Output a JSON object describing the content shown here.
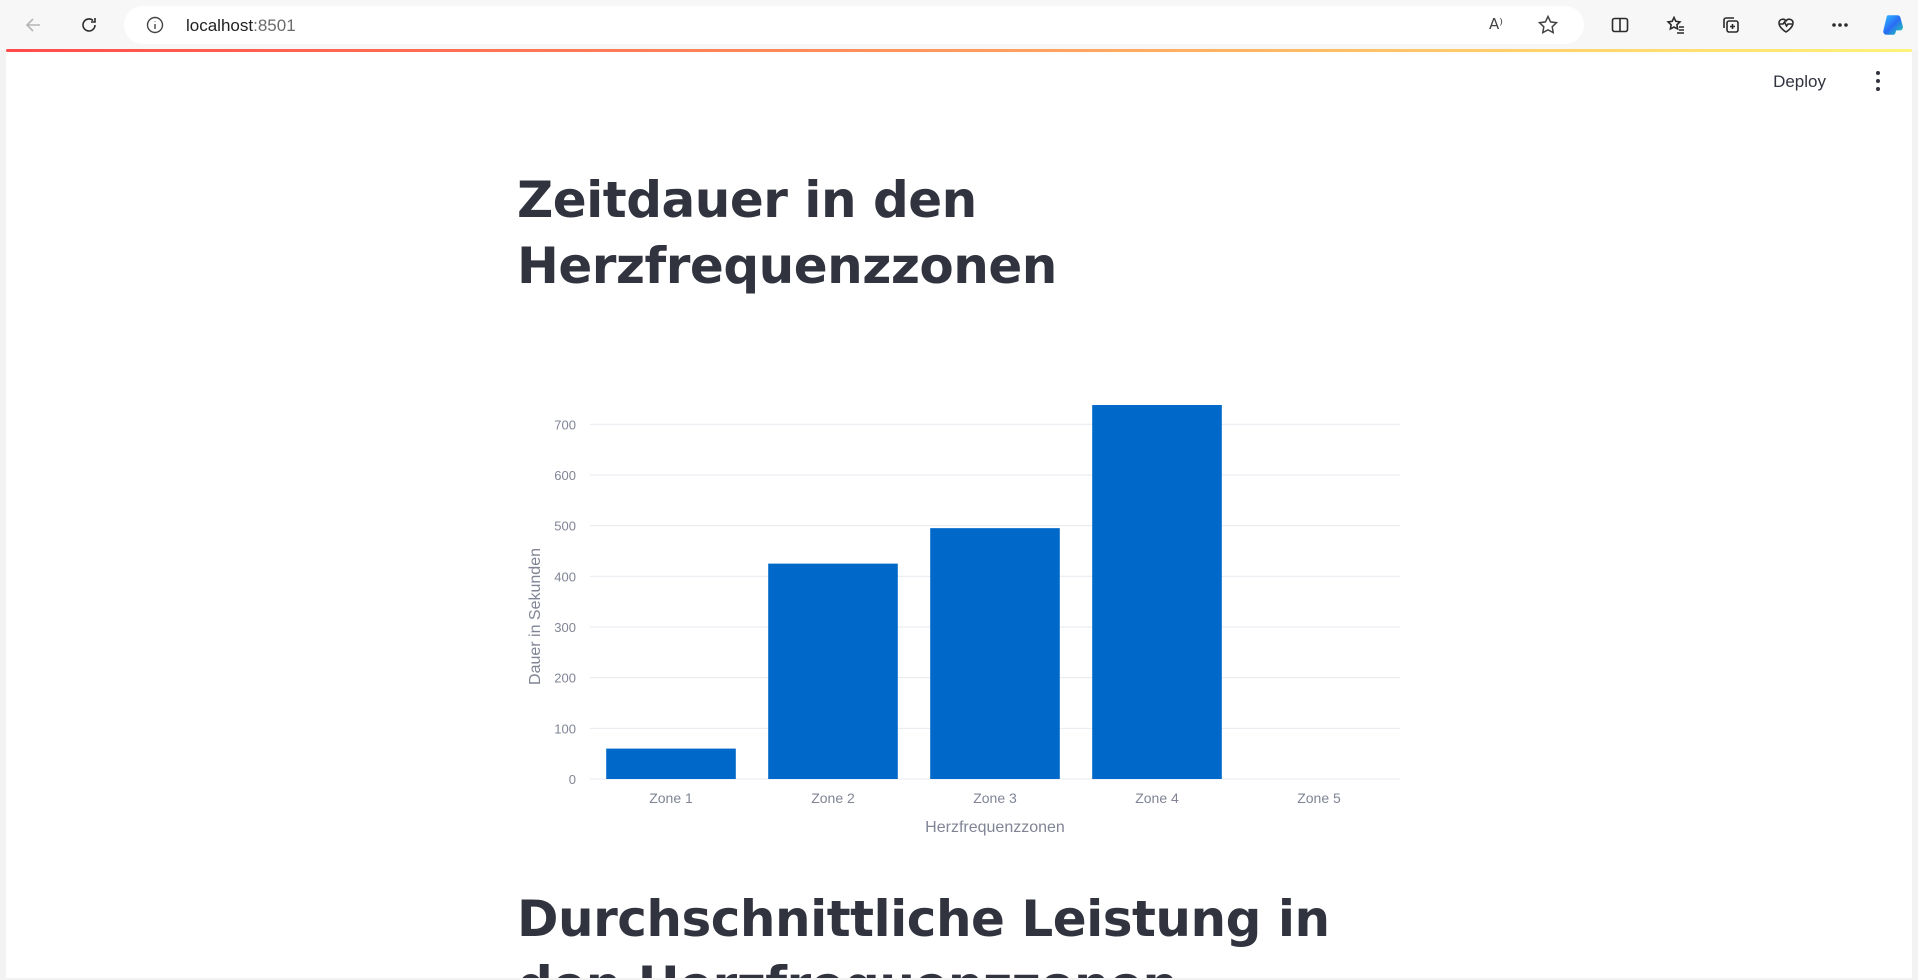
{
  "browser": {
    "url_host": "localhost",
    "url_port": ":8501",
    "read_aloud_label": "A⁾"
  },
  "app": {
    "deploy_label": "Deploy",
    "title_1": "Zeitdauer in den Herzfrequenzzonen",
    "title_2": "Durchschnittliche Leistung in den Herzfrequenzzonen"
  },
  "colors": {
    "bar": "#0068c9",
    "grid": "#e6e9ef",
    "tick_text": "#808495",
    "heading": "#31333f"
  },
  "chart_data": {
    "type": "bar",
    "categories": [
      "Zone 1",
      "Zone 2",
      "Zone 3",
      "Zone 4",
      "Zone 5"
    ],
    "values": [
      60,
      425,
      495,
      738,
      0
    ],
    "title": "",
    "xlabel": "Herzfrequenzzonen",
    "ylabel": "Dauer in Sekunden",
    "ylim": [
      0,
      740
    ],
    "yticks": [
      0,
      100,
      200,
      300,
      400,
      500,
      600,
      700
    ],
    "grid": true,
    "legend": "none"
  }
}
